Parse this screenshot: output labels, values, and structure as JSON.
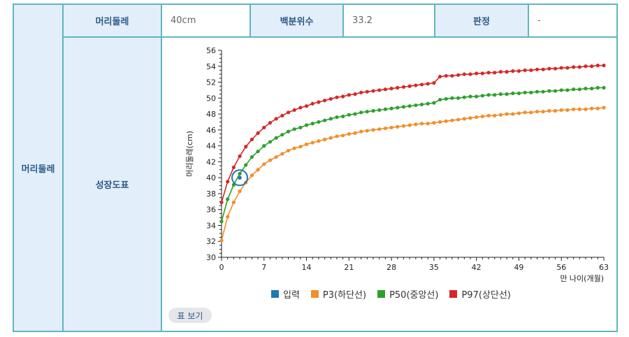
{
  "table": {
    "row_header": "머리둘레",
    "measure_label": "머리둘레",
    "measure_value": "40cm",
    "percentile_label": "백분위수",
    "percentile_value": "33.2",
    "verdict_label": "판정",
    "verdict_value": "-",
    "chart_label": "성장도표",
    "table_button": "표 보기"
  },
  "chart_data": {
    "type": "line",
    "xlabel": "만 나이(개월)",
    "ylabel": "머리둘레(cm)",
    "xlim": [
      0,
      63
    ],
    "ylim": [
      30,
      56
    ],
    "xticks": [
      0,
      7,
      14,
      21,
      28,
      35,
      42,
      49,
      56,
      63
    ],
    "yticks": [
      30,
      32,
      34,
      36,
      38,
      40,
      42,
      44,
      46,
      48,
      50,
      52,
      54,
      56
    ],
    "legend": [
      {
        "name": "입력",
        "color": "#1f77b4"
      },
      {
        "name": "P3(하단선)",
        "color": "#f28e2b"
      },
      {
        "name": "P50(중앙선)",
        "color": "#2ca02c"
      },
      {
        "name": "P97(상단선)",
        "color": "#d62728"
      }
    ],
    "x": [
      0,
      1,
      2,
      3,
      4,
      5,
      6,
      7,
      8,
      9,
      10,
      11,
      12,
      13,
      14,
      15,
      16,
      17,
      18,
      19,
      20,
      21,
      22,
      23,
      24,
      25,
      26,
      27,
      28,
      29,
      30,
      31,
      32,
      33,
      34,
      35,
      36,
      37,
      38,
      39,
      40,
      41,
      42,
      43,
      44,
      45,
      46,
      47,
      48,
      49,
      50,
      51,
      52,
      53,
      54,
      55,
      56,
      57,
      58,
      59,
      60,
      61,
      62,
      63
    ],
    "series": [
      {
        "name": "P3(하단선)",
        "color": "#f28e2b",
        "values": [
          32.1,
          35.1,
          36.9,
          38.3,
          39.4,
          40.3,
          41.0,
          41.7,
          42.2,
          42.6,
          43.0,
          43.4,
          43.7,
          43.9,
          44.2,
          44.4,
          44.6,
          44.8,
          45.0,
          45.2,
          45.3,
          45.5,
          45.6,
          45.8,
          45.9,
          46.0,
          46.1,
          46.2,
          46.3,
          46.4,
          46.5,
          46.6,
          46.7,
          46.8,
          46.8,
          46.9,
          47.0,
          47.1,
          47.2,
          47.3,
          47.4,
          47.5,
          47.6,
          47.7,
          47.8,
          47.8,
          47.9,
          48.0,
          48.0,
          48.1,
          48.2,
          48.2,
          48.3,
          48.3,
          48.4,
          48.4,
          48.5,
          48.5,
          48.6,
          48.6,
          48.6,
          48.7,
          48.7,
          48.8
        ]
      },
      {
        "name": "P50(중앙선)",
        "color": "#2ca02c",
        "values": [
          34.5,
          37.3,
          39.1,
          40.5,
          41.6,
          42.6,
          43.3,
          44.0,
          44.5,
          45.0,
          45.4,
          45.8,
          46.1,
          46.3,
          46.6,
          46.8,
          47.0,
          47.2,
          47.4,
          47.6,
          47.7,
          47.9,
          48.0,
          48.2,
          48.3,
          48.4,
          48.5,
          48.6,
          48.7,
          48.8,
          48.9,
          49.0,
          49.1,
          49.2,
          49.3,
          49.4,
          49.8,
          49.9,
          50.0,
          50.0,
          50.1,
          50.2,
          50.2,
          50.3,
          50.4,
          50.4,
          50.5,
          50.5,
          50.6,
          50.6,
          50.7,
          50.7,
          50.8,
          50.8,
          50.9,
          50.9,
          51.0,
          51.0,
          51.1,
          51.1,
          51.2,
          51.2,
          51.3,
          51.3
        ]
      },
      {
        "name": "P97(상단선)",
        "color": "#d62728",
        "values": [
          36.9,
          39.5,
          41.3,
          42.7,
          43.9,
          44.8,
          45.6,
          46.3,
          46.9,
          47.4,
          47.8,
          48.2,
          48.5,
          48.8,
          49.0,
          49.3,
          49.5,
          49.7,
          49.9,
          50.1,
          50.2,
          50.4,
          50.5,
          50.7,
          50.8,
          50.9,
          51.0,
          51.1,
          51.2,
          51.3,
          51.4,
          51.5,
          51.6,
          51.7,
          51.8,
          51.9,
          52.7,
          52.8,
          52.8,
          52.9,
          53.0,
          53.0,
          53.1,
          53.1,
          53.2,
          53.2,
          53.3,
          53.3,
          53.4,
          53.4,
          53.5,
          53.5,
          53.6,
          53.6,
          53.7,
          53.7,
          53.8,
          53.8,
          53.9,
          53.9,
          54.0,
          54.0,
          54.1,
          54.1
        ]
      }
    ],
    "input_point": {
      "name": "입력",
      "x": 3,
      "y": 40,
      "color": "#1f77b4"
    }
  }
}
